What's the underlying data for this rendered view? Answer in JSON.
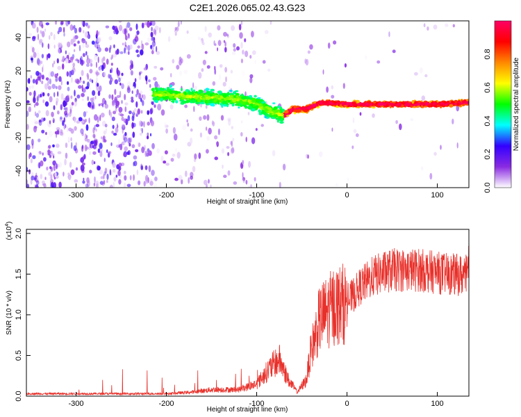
{
  "chart_data": [
    {
      "type": "heatmap",
      "title": "C2E1.2026.065.02.43.G23",
      "xlabel": "Height of straight line (km)",
      "ylabel": "Frequency (Hz)",
      "xlim": [
        -355,
        135
      ],
      "ylim": [
        -50,
        50
      ],
      "xticks": [
        "-300",
        "-200",
        "-100",
        "0",
        "100"
      ],
      "yticks": [
        "-40",
        "-20",
        "0",
        "20",
        "40"
      ],
      "colorbar": {
        "label": "Normalized spectral amplitude",
        "range": [
          0,
          1
        ],
        "ticks": [
          "0.0",
          "0.2",
          "0.4",
          "0.6",
          "0.8"
        ],
        "colors": [
          "#ffffff",
          "#8a2be2",
          "#3300ff",
          "#00ffff",
          "#00ff00",
          "#ffff00",
          "#ff8800",
          "#ff0000",
          "#ff0066"
        ]
      },
      "ridge": [
        {
          "x": -210,
          "y": 6
        },
        {
          "x": -180,
          "y": 5
        },
        {
          "x": -150,
          "y": 4
        },
        {
          "x": -120,
          "y": 3
        },
        {
          "x": -100,
          "y": 0
        },
        {
          "x": -85,
          "y": -4
        },
        {
          "x": -70,
          "y": -7
        },
        {
          "x": -60,
          "y": -3
        },
        {
          "x": -45,
          "y": -3
        },
        {
          "x": -30,
          "y": 1
        },
        {
          "x": 0,
          "y": 0
        },
        {
          "x": 50,
          "y": 0
        },
        {
          "x": 100,
          "y": 0
        },
        {
          "x": 135,
          "y": 1
        }
      ]
    },
    {
      "type": "line",
      "xlabel": "Height of straight line (km)",
      "ylabel": "SNR (10 * v/v)",
      "yscale_label": "(x10",
      "yscale_exp": "4",
      "yscale_close": ")",
      "xlim": [
        -355,
        135
      ],
      "ylim": [
        0,
        2.05
      ],
      "xticks": [
        "-300",
        "-200",
        "-100",
        "0",
        "100"
      ],
      "yticks": [
        "0.0",
        "0.5",
        "1.0",
        "1.5",
        "2.0"
      ],
      "color": "#e8302a",
      "envelope": [
        {
          "x": -355,
          "y": 0.03
        },
        {
          "x": -250,
          "y": 0.03
        },
        {
          "x": -200,
          "y": 0.03
        },
        {
          "x": -170,
          "y": 0.05
        },
        {
          "x": -150,
          "y": 0.08
        },
        {
          "x": -120,
          "y": 0.08
        },
        {
          "x": -100,
          "y": 0.15
        },
        {
          "x": -85,
          "y": 0.35
        },
        {
          "x": -75,
          "y": 0.45
        },
        {
          "x": -65,
          "y": 0.2
        },
        {
          "x": -55,
          "y": 0.05
        },
        {
          "x": -45,
          "y": 0.2
        },
        {
          "x": -40,
          "y": 0.55
        },
        {
          "x": -30,
          "y": 0.95
        },
        {
          "x": -15,
          "y": 1.1
        },
        {
          "x": 0,
          "y": 1.15
        },
        {
          "x": 15,
          "y": 1.35
        },
        {
          "x": 30,
          "y": 1.48
        },
        {
          "x": 50,
          "y": 1.55
        },
        {
          "x": 80,
          "y": 1.55
        },
        {
          "x": 110,
          "y": 1.5
        },
        {
          "x": 135,
          "y": 1.48
        }
      ]
    }
  ]
}
